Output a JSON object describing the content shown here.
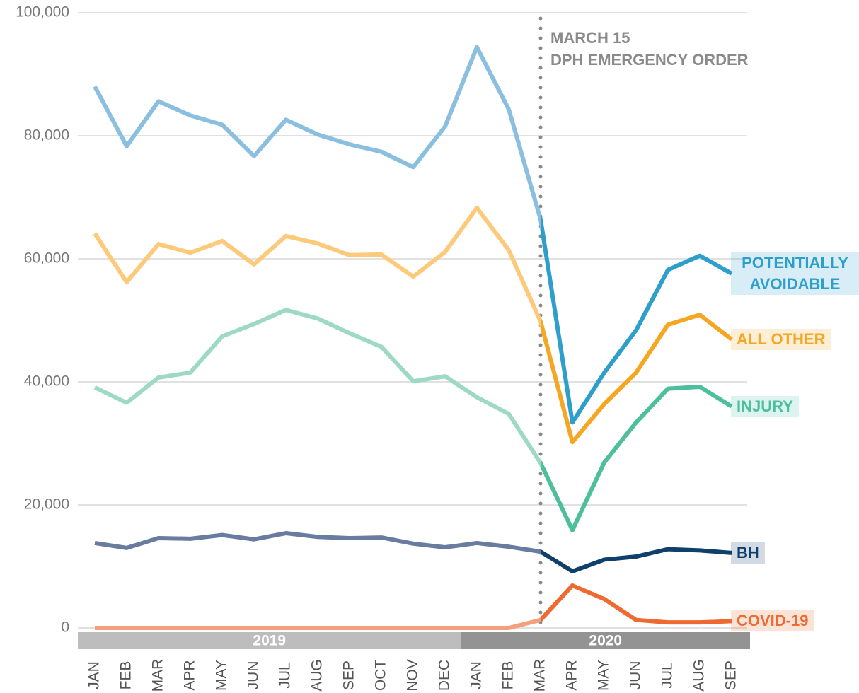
{
  "chart_data": {
    "type": "line",
    "annotation": {
      "title": "MARCH 15",
      "text": "DPH EMERGENCY ORDER"
    },
    "categories": [
      "JAN",
      "FEB",
      "MAR",
      "APR",
      "MAY",
      "JUN",
      "JUL",
      "AUG",
      "SEP",
      "OCT",
      "NOV",
      "DEC",
      "JAN",
      "FEB",
      "MAR",
      "APR",
      "MAY",
      "JUN",
      "JUL",
      "AUG",
      "SEP"
    ],
    "year_labels": [
      "2019",
      "2020"
    ],
    "series": [
      {
        "name": "POTENTIALLY AVOIDABLE",
        "color": "#2e9fcb",
        "color_2019": "#8bbfe0",
        "values": [
          88000,
          78300,
          85600,
          83300,
          81800,
          76700,
          82600,
          80200,
          78600,
          77400,
          74900,
          81500,
          94400,
          84300,
          66400,
          33400,
          41500,
          48400,
          58200,
          60500,
          57600
        ]
      },
      {
        "name": "ALL OTHER",
        "color": "#f5a623",
        "color_2019": "#fdc97a",
        "values": [
          64100,
          56200,
          62400,
          61000,
          62900,
          59100,
          63700,
          62500,
          60600,
          60700,
          57100,
          61100,
          68300,
          61400,
          49800,
          30200,
          36400,
          41500,
          49300,
          50900,
          46900
        ]
      },
      {
        "name": "INJURY",
        "color": "#4dbf9d",
        "color_2019": "#9dd9c3",
        "values": [
          39100,
          36600,
          40700,
          41500,
          47400,
          49400,
          51700,
          50300,
          47900,
          45700,
          40100,
          40900,
          37500,
          34800,
          26800,
          15900,
          26900,
          33400,
          38900,
          39200,
          36000
        ]
      },
      {
        "name": "BH",
        "color": "#0f3f6b",
        "color_2019": "#6a7ba0",
        "values": [
          13800,
          13000,
          14600,
          14500,
          15100,
          14400,
          15400,
          14800,
          14600,
          14700,
          13700,
          13100,
          13800,
          13200,
          12400,
          9200,
          11100,
          11600,
          12800,
          12600,
          12200
        ]
      },
      {
        "name": "COVID-19",
        "color": "#ef6a30",
        "color_2019": "#f5a07c",
        "values": [
          0,
          0,
          0,
          0,
          0,
          0,
          0,
          0,
          0,
          0,
          0,
          0,
          0,
          0,
          1300,
          6900,
          4700,
          1300,
          900,
          900,
          1100
        ]
      }
    ],
    "ylim": [
      0,
      100000
    ],
    "yticks": [
      0,
      {
        "value": 20000,
        "label": "20,000"
      },
      {
        "value": 40000,
        "label": "40,000"
      },
      {
        "value": 60000,
        "label": "60,000"
      },
      {
        "value": 80000,
        "label": "80,000"
      },
      {
        "value": 100000,
        "label": "100,000"
      }
    ],
    "grid": true
  }
}
